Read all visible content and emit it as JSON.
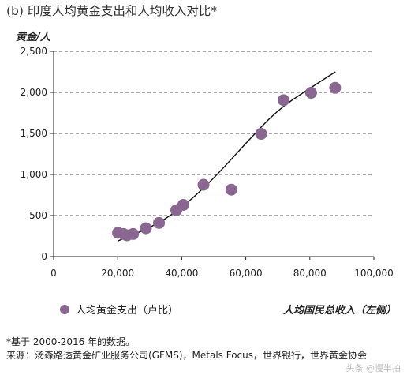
{
  "header": {
    "title": "(b) 印度人均黄金支出和人均收入对比*",
    "y_unit": "黄金/人"
  },
  "legend": {
    "label": "人均黄金支出（卢比）"
  },
  "x_axis_label": "人均国民总收入（左侧）",
  "footer": {
    "note": "*基于 2000-2016 年的数据。",
    "source": "来源：汤森路透黄金矿业服务公司(GFMS)，Metals Focus，世界银行，世界黄金协会",
    "watermark": "头条 @慢半拍"
  },
  "colors": {
    "marker": "#8a6791",
    "trend": "#111111",
    "grid": "#555555"
  },
  "chart_data": {
    "type": "scatter",
    "xlim": [
      0,
      100000
    ],
    "ylim": [
      0,
      2500
    ],
    "x_ticks": [
      "0",
      "20,000",
      "40,000",
      "60,000",
      "80,000",
      "100,000"
    ],
    "y_ticks": [
      "0",
      "500",
      "1,000",
      "1,500",
      "2,000",
      "2,500"
    ],
    "grid": "horizontal dashed",
    "legend_position": "bottom-left",
    "series": [
      {
        "name": "人均黄金支出（卢比）",
        "points": [
          [
            20100,
            290
          ],
          [
            21800,
            275
          ],
          [
            22900,
            260
          ],
          [
            24800,
            275
          ],
          [
            28800,
            345
          ],
          [
            32900,
            410
          ],
          [
            38300,
            565
          ],
          [
            40500,
            630
          ],
          [
            46800,
            875
          ],
          [
            55500,
            815
          ],
          [
            64800,
            1495
          ],
          [
            71800,
            1905
          ],
          [
            80400,
            1995
          ],
          [
            87900,
            2055
          ]
        ]
      }
    ],
    "trendline": [
      [
        20000,
        190
      ],
      [
        30000,
        340
      ],
      [
        40000,
        590
      ],
      [
        50000,
        950
      ],
      [
        60000,
        1380
      ],
      [
        70000,
        1790
      ],
      [
        80000,
        2050
      ],
      [
        88000,
        2250
      ]
    ]
  }
}
